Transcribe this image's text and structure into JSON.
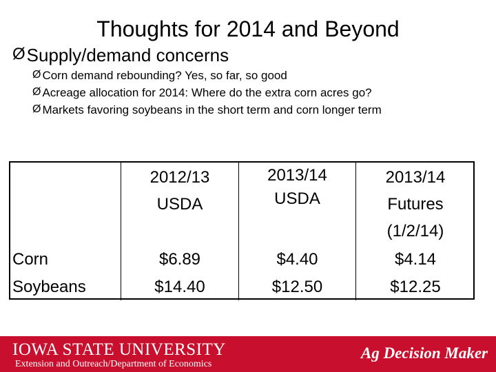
{
  "slide": {
    "title": "Thoughts for 2014 and Beyond",
    "main_bullet": "Supply/demand concerns",
    "sub_bullets": [
      "Corn demand rebounding? Yes, so far, so good",
      "Acreage allocation for 2014: Where do the extra corn acres go?",
      "Markets favoring soybeans in the short term and corn longer term"
    ],
    "arrow_glyph": "Ø"
  },
  "table": {
    "headers": [
      [
        "2012/13",
        "USDA"
      ],
      [
        "2013/14",
        "USDA"
      ],
      [
        "2013/14",
        "Futures",
        "(1/2/14)"
      ]
    ],
    "rows": [
      {
        "label": "Corn",
        "values": [
          "$6.89",
          "$4.40",
          "$4.14"
        ]
      },
      {
        "label": "Soybeans",
        "values": [
          "$14.40",
          "$12.50",
          "$12.25"
        ]
      }
    ]
  },
  "footer": {
    "university": "IOWA STATE UNIVERSITY",
    "department": "Extension and Outreach/Department of Economics",
    "brand": "Ag Decision Maker",
    "color": "#c8102e"
  }
}
